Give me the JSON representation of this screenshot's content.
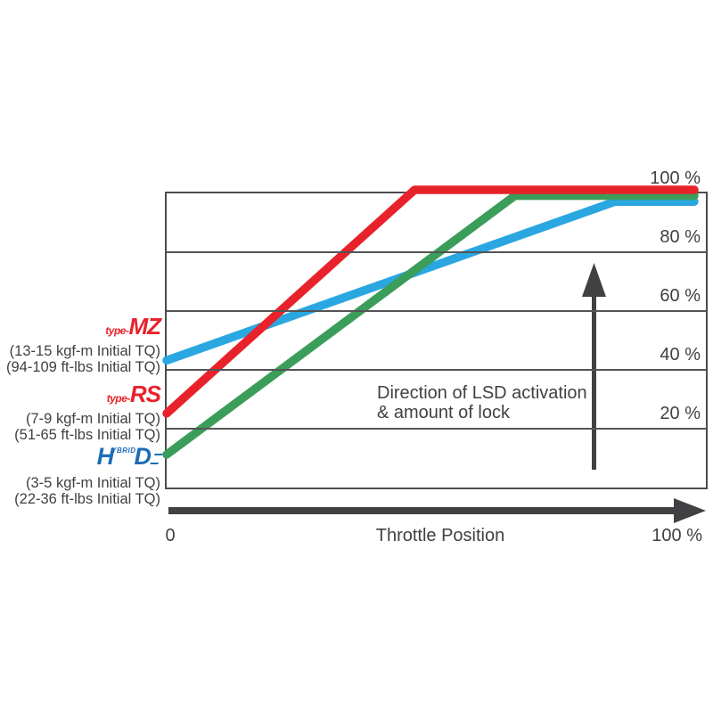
{
  "legend": {
    "items": [
      {
        "type_prefix": "type-",
        "model": "MZ",
        "line1": "(13-15 kgf-m Initial TQ)",
        "line2": "(94-109 ft-lbs Initial TQ)"
      },
      {
        "type_prefix": "type-",
        "model": "RS",
        "line1": "(7-9 kgf-m Initial TQ)",
        "line2": "(51-65 ft-lbs Initial TQ)"
      },
      {
        "logo_h": "H",
        "logo_ybrid": "YBRID",
        "logo_d": "D",
        "line1": "(3-5 kgf-m Initial TQ)",
        "line2": "(22-36 ft-lbs Initial TQ)"
      }
    ]
  },
  "annotation": {
    "line1": "Direction of LSD activation",
    "line2": "& amount of lock"
  },
  "x_axis": {
    "min_label": "0",
    "title": "Throttle Position",
    "max_label": "100 %"
  },
  "colors": {
    "accent_red": "#e8222a",
    "accent_green": "#3b9d5a",
    "accent_blue": "#2aa7e1",
    "hd_logo_blue": "#1c6db7",
    "axis_dark": "#414042",
    "grid_gray": "#545456"
  },
  "chart_data": {
    "type": "line",
    "title": "",
    "xlabel": "Throttle Position",
    "ylabel": "LSD activation / amount of lock",
    "xlim": [
      0,
      100
    ],
    "ylim": [
      0,
      100
    ],
    "x_tick_labels": [
      "0",
      "100 %"
    ],
    "y_ticks": [
      100,
      80,
      60,
      40,
      20
    ],
    "y_tick_suffix": " %",
    "grid": true,
    "legend_position": "left",
    "annotations": [
      "Direction of LSD activation & amount of lock (upward arrow)"
    ],
    "series": [
      {
        "name": "type-MZ",
        "color": "#2aa7e1",
        "points": [
          [
            0,
            42
          ],
          [
            85,
            96
          ],
          [
            100,
            96
          ]
        ]
      },
      {
        "name": "HD hybrid",
        "color": "#3b9d5a",
        "points": [
          [
            0,
            10
          ],
          [
            66,
            98
          ],
          [
            100,
            98
          ]
        ]
      },
      {
        "name": "type-RS",
        "color": "#e8222a",
        "points": [
          [
            0,
            24
          ],
          [
            47,
            100
          ],
          [
            100,
            100
          ]
        ]
      }
    ]
  }
}
